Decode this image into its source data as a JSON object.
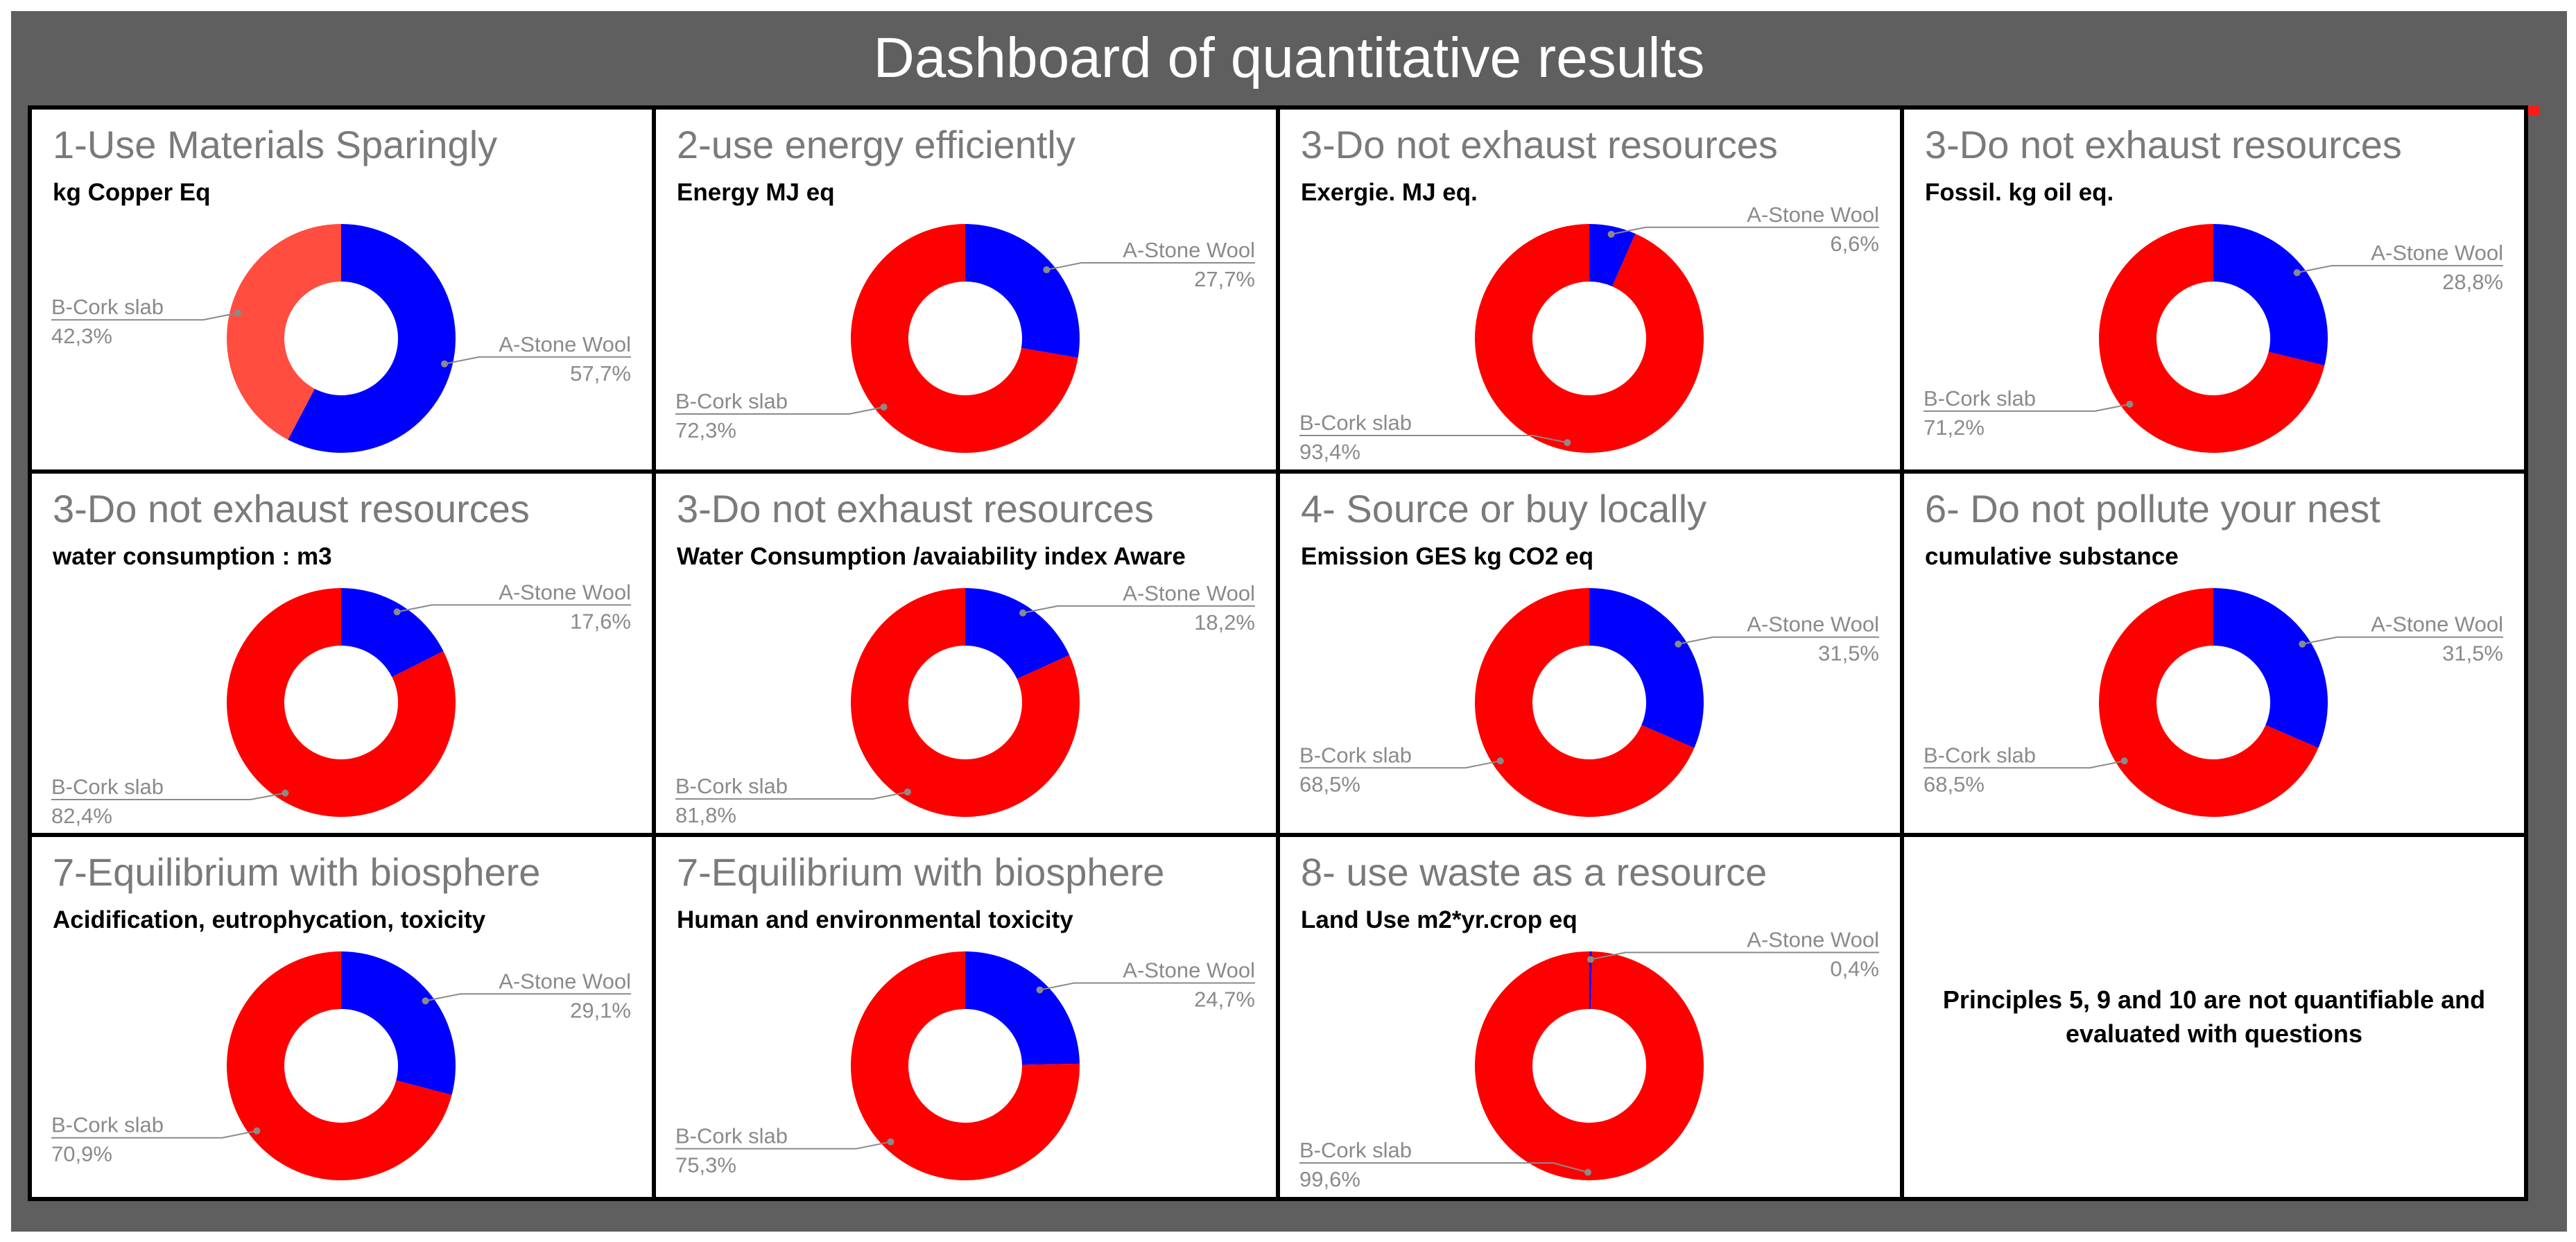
{
  "page_title": "Dashboard of quantitative results",
  "note": "Principles 5, 9 and 10 are not quantifiable and evaluated with questions",
  "colors": {
    "stone_wool": "#0000ff",
    "cork_slab": "#ff0000",
    "cork_slab_light": "#ff4d40"
  },
  "chart_data": [
    {
      "type": "pie",
      "title": "1-Use Materials Sparingly",
      "subtitle": "kg Copper Eq",
      "labels": [
        "A-Stone Wool",
        "B-Cork slab"
      ],
      "values": [
        57.7,
        42.3
      ],
      "value_labels": [
        "57,7%",
        "42,3%"
      ]
    },
    {
      "type": "pie",
      "title": "2-use energy efficiently",
      "subtitle": "Energy MJ eq",
      "labels": [
        "A-Stone Wool",
        "B-Cork slab"
      ],
      "values": [
        27.7,
        72.3
      ],
      "value_labels": [
        "27,7%",
        "72,3%"
      ]
    },
    {
      "type": "pie",
      "title": "3-Do not exhaust resources",
      "subtitle": "Exergie. MJ eq.",
      "labels": [
        "A-Stone Wool",
        "B-Cork slab"
      ],
      "values": [
        6.6,
        93.4
      ],
      "value_labels": [
        "6,6%",
        "93,4%"
      ]
    },
    {
      "type": "pie",
      "title": "3-Do not exhaust resources",
      "subtitle": "Fossil. kg oil eq.",
      "labels": [
        "A-Stone Wool",
        "B-Cork slab"
      ],
      "values": [
        28.8,
        71.2
      ],
      "value_labels": [
        "28,8%",
        "71,2%"
      ]
    },
    {
      "type": "pie",
      "title": "3-Do not exhaust resources",
      "subtitle": "water consumption : m3",
      "labels": [
        "A-Stone Wool",
        "B-Cork slab"
      ],
      "values": [
        17.6,
        82.4
      ],
      "value_labels": [
        "17,6%",
        "82,4%"
      ]
    },
    {
      "type": "pie",
      "title": "3-Do not exhaust resources",
      "subtitle": "Water Consumption /avaiability index Aware",
      "labels": [
        "A-Stone Wool",
        "B-Cork slab"
      ],
      "values": [
        18.2,
        81.8
      ],
      "value_labels": [
        "18,2%",
        "81,8%"
      ]
    },
    {
      "type": "pie",
      "title": "4- Source or buy locally",
      "subtitle": "Emission GES kg CO2 eq",
      "labels": [
        "A-Stone Wool",
        "B-Cork slab"
      ],
      "values": [
        31.5,
        68.5
      ],
      "value_labels": [
        "31,5%",
        "68,5%"
      ]
    },
    {
      "type": "pie",
      "title": "6- Do not pollute your nest",
      "subtitle": "cumulative substance",
      "labels": [
        "A-Stone Wool",
        "B-Cork slab"
      ],
      "values": [
        31.5,
        68.5
      ],
      "value_labels": [
        "31,5%",
        "68,5%"
      ]
    },
    {
      "type": "pie",
      "title": "7-Equilibrium with biosphere",
      "subtitle": "Acidification, eutrophycation, toxicity",
      "labels": [
        "A-Stone Wool",
        "B-Cork slab"
      ],
      "values": [
        29.1,
        70.9
      ],
      "value_labels": [
        "29,1%",
        "70,9%"
      ]
    },
    {
      "type": "pie",
      "title": "7-Equilibrium with biosphere",
      "subtitle": "Human and environmental toxicity",
      "labels": [
        "A-Stone Wool",
        "B-Cork slab"
      ],
      "values": [
        24.7,
        75.3
      ],
      "value_labels": [
        "24,7%",
        "75,3%"
      ]
    },
    {
      "type": "pie",
      "title": "8- use waste as a resource",
      "subtitle": "Land Use m2*yr.crop eq",
      "labels": [
        "A-Stone Wool",
        "B-Cork slab"
      ],
      "values": [
        0.4,
        99.6
      ],
      "value_labels": [
        "0,4%",
        "99,6%"
      ]
    }
  ]
}
